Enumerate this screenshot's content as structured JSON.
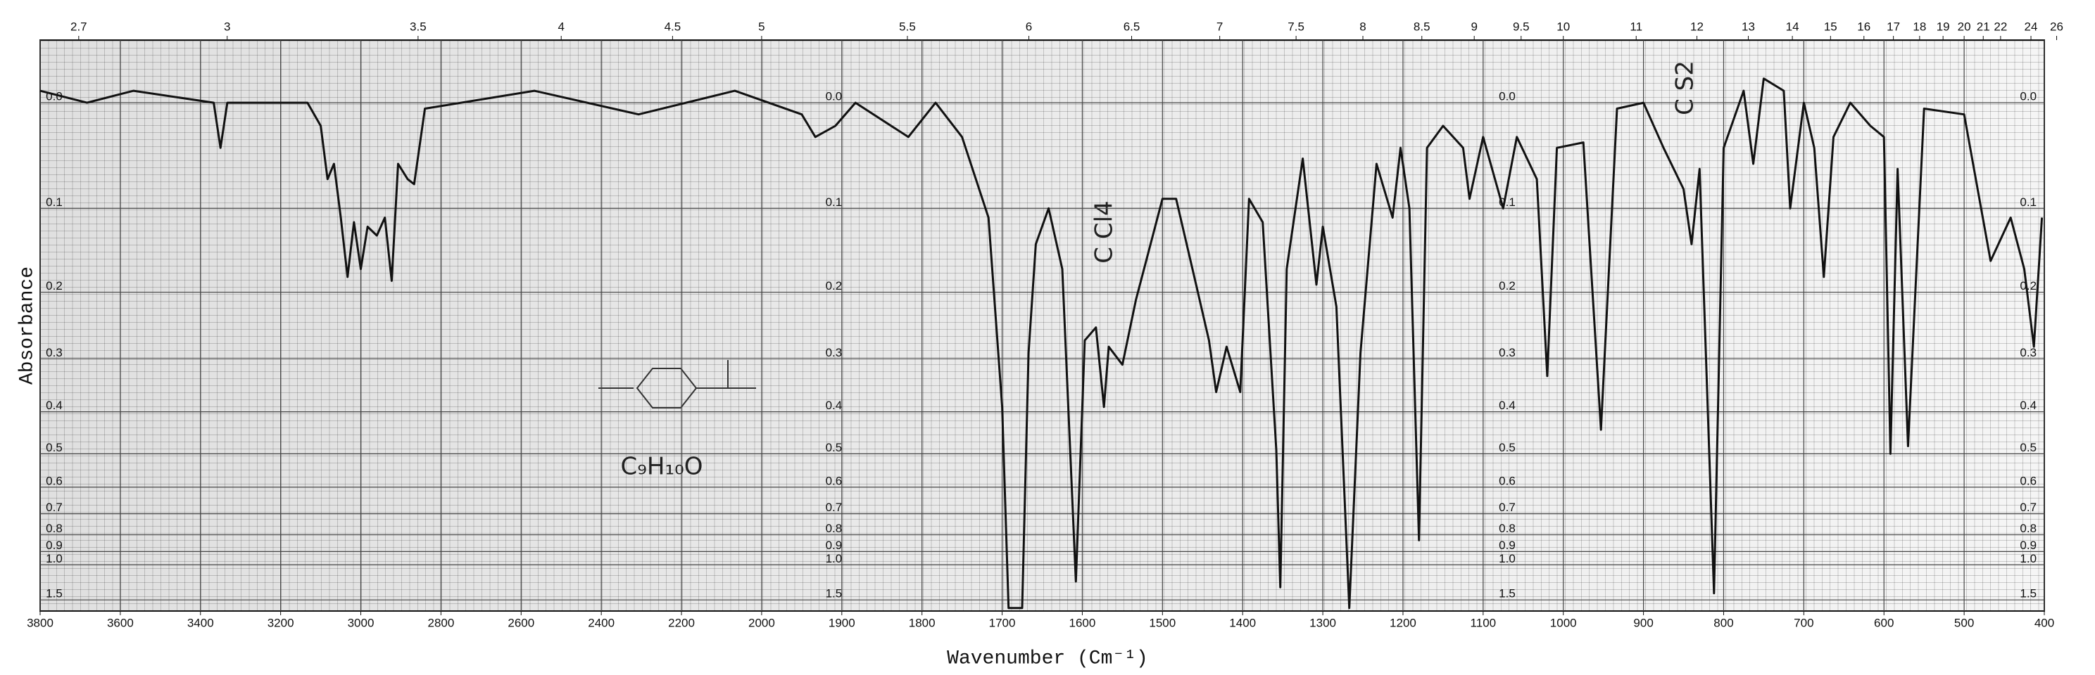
{
  "chart_data": {
    "type": "line",
    "xlabel": "Wavenumber (Cm⁻¹)",
    "ylabel": "Absorbance",
    "annotations": [
      "C Cl4",
      "C S2",
      "C₉H₁₀O"
    ],
    "xlim": [
      3800,
      400
    ],
    "x_scale_break": 2000,
    "x_scale_ratio": 2,
    "xticks": [
      3800,
      3600,
      3400,
      3200,
      3000,
      2800,
      2600,
      2400,
      2200,
      2000,
      1900,
      1800,
      1700,
      1600,
      1500,
      1400,
      1300,
      1200,
      1100,
      1000,
      900,
      800,
      700,
      600,
      500,
      400
    ],
    "x2ticks": [
      2.7,
      3.0,
      3.5,
      4.0,
      4.5,
      5.0,
      5.5,
      6.0,
      6.5,
      7.0,
      7.5,
      8.0,
      8.5,
      9.0,
      9.5,
      10,
      11,
      12,
      13,
      14,
      15,
      16,
      17,
      18,
      19,
      20,
      21,
      22,
      24,
      26
    ],
    "ylim": [
      -0.05,
      2
    ],
    "yscale": "transmittance",
    "yticks": [
      {
        "value": 0,
        "label": "0.0"
      },
      0.1,
      0.2,
      0.3,
      0.4,
      0.5,
      0.6,
      0.7,
      0.8,
      0.9,
      {
        "value": 1,
        "label": "1.0"
      },
      1.5
    ],
    "grid": true,
    "color": "#111111",
    "x": [
      3800,
      3683,
      3567,
      3367,
      3350,
      3333,
      3133,
      3100,
      3083,
      3067,
      3050,
      3033,
      3017,
      3000,
      2983,
      2960,
      2940,
      2923,
      2907,
      2883,
      2867,
      2840,
      2567,
      2307,
      2067,
      1950,
      1933,
      1908,
      1883,
      1817,
      1783,
      1750,
      1717,
      1700,
      1692,
      1675,
      1667,
      1658,
      1642,
      1625,
      1608,
      1597,
      1583,
      1573,
      1567,
      1550,
      1533,
      1500,
      1483,
      1458,
      1442,
      1433,
      1420,
      1403,
      1392,
      1375,
      1358,
      1353,
      1345,
      1325,
      1308,
      1300,
      1283,
      1267,
      1253,
      1233,
      1213,
      1203,
      1192,
      1180,
      1170,
      1150,
      1125,
      1117,
      1100,
      1075,
      1058,
      1033,
      1020,
      1008,
      975,
      953,
      933,
      900,
      875,
      850,
      840,
      830,
      812,
      800,
      775,
      763,
      750,
      725,
      717,
      700,
      687,
      675,
      663,
      642,
      617,
      600,
      592,
      583,
      570,
      550,
      500,
      467,
      442,
      425,
      413,
      403
    ],
    "values": [
      -0.01,
      0.0,
      -0.01,
      0.0,
      0.04,
      0.0,
      0.0,
      0.02,
      0.07,
      0.055,
      0.11,
      0.18,
      0.115,
      0.17,
      0.12,
      0.13,
      0.11,
      0.185,
      0.055,
      0.07,
      0.075,
      0.005,
      -0.01,
      0.01,
      -0.01,
      0.01,
      0.03,
      0.02,
      0.0,
      0.03,
      0.0,
      0.03,
      0.11,
      0.39,
      1.8,
      1.8,
      0.29,
      0.14,
      0.1,
      0.17,
      1.17,
      0.27,
      0.25,
      0.39,
      0.28,
      0.31,
      0.21,
      0.09,
      0.09,
      0.19,
      0.27,
      0.36,
      0.28,
      0.36,
      0.09,
      0.115,
      0.49,
      1.25,
      0.17,
      0.05,
      0.19,
      0.12,
      0.22,
      1.8,
      0.29,
      0.055,
      0.11,
      0.04,
      0.1,
      0.83,
      0.04,
      0.02,
      0.04,
      0.09,
      0.03,
      0.1,
      0.03,
      0.07,
      0.33,
      0.04,
      0.035,
      0.44,
      0.005,
      0.0,
      0.04,
      0.08,
      0.14,
      0.06,
      1.35,
      0.04,
      -0.01,
      0.055,
      -0.02,
      -0.01,
      0.1,
      0.0,
      0.04,
      0.18,
      0.03,
      0.0,
      0.02,
      0.03,
      0.5,
      0.06,
      0.48,
      0.005,
      0.01,
      0.16,
      0.11,
      0.17,
      0.28,
      0.11
    ]
  }
}
